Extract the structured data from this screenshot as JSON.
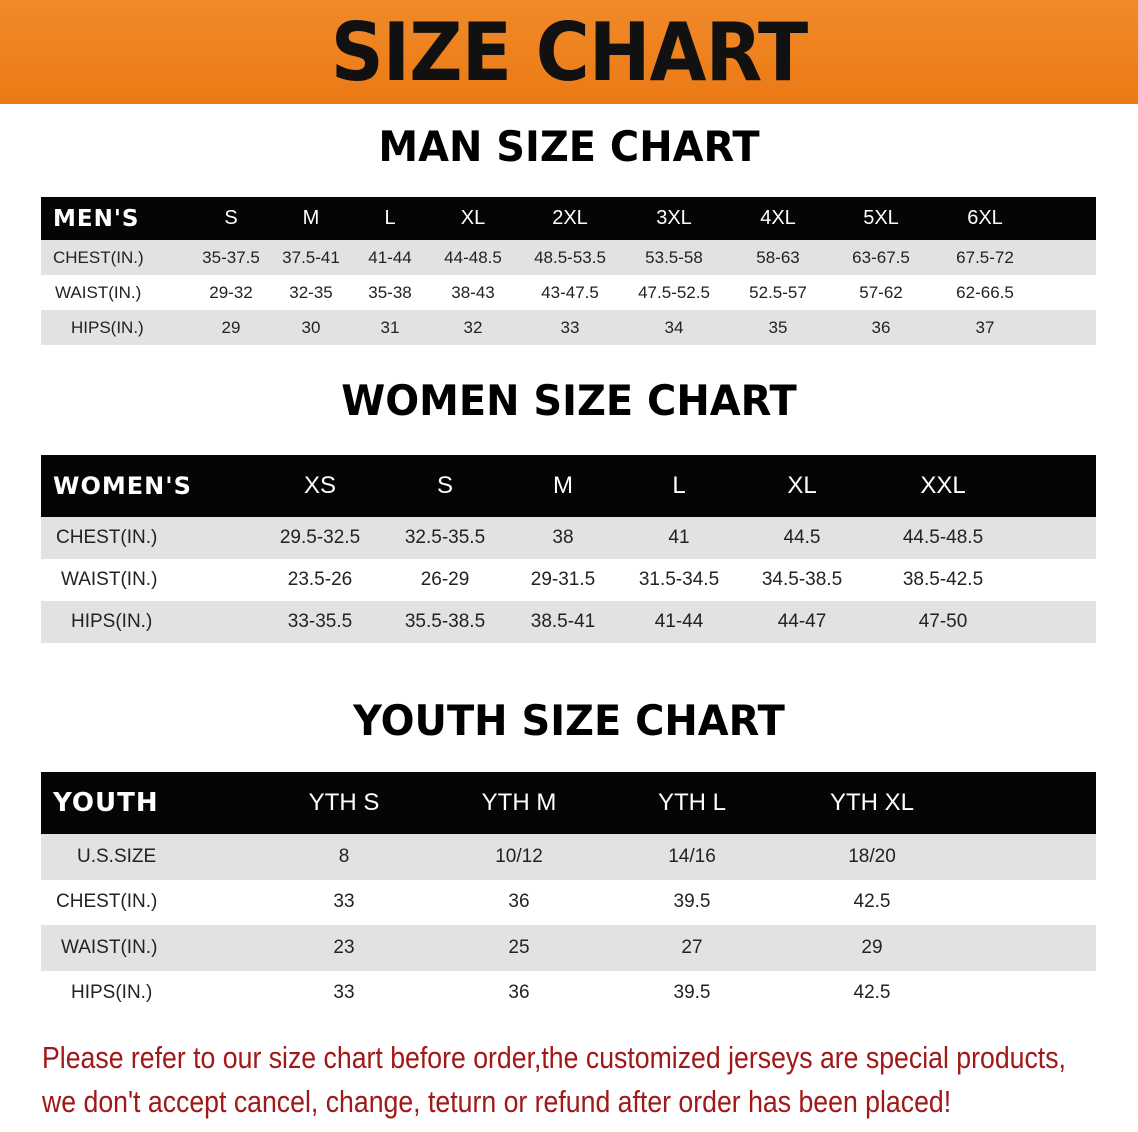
{
  "banner_title": "SIZE CHART",
  "colors": {
    "banner": "#ee7f1c",
    "header_row": "#050505",
    "stripe": "#e2e2e2",
    "note_text": "#a11818"
  },
  "men": {
    "title": "MAN SIZE CHART",
    "header": [
      "MEN'S",
      "S",
      "M",
      "L",
      "XL",
      "2XL",
      "3XL",
      "4XL",
      "5XL",
      "6XL"
    ],
    "rows": [
      [
        "CHEST(IN.)",
        "35-37.5",
        "37.5-41",
        "41-44",
        "44-48.5",
        "48.5-53.5",
        "53.5-58",
        "58-63",
        "63-67.5",
        "67.5-72"
      ],
      [
        "WAIST(IN.)",
        "29-32",
        "32-35",
        "35-38",
        "38-43",
        "43-47.5",
        "47.5-52.5",
        "52.5-57",
        "57-62",
        "62-66.5"
      ],
      [
        "HIPS(IN.)",
        "29",
        "30",
        "31",
        "32",
        "33",
        "34",
        "35",
        "36",
        "37"
      ]
    ]
  },
  "women": {
    "title": "WOMEN SIZE CHART",
    "header": [
      "WOMEN'S",
      "XS",
      "S",
      "M",
      "L",
      "XL",
      "XXL"
    ],
    "rows": [
      [
        "CHEST(IN.)",
        "29.5-32.5",
        "32.5-35.5",
        "38",
        "41",
        "44.5",
        "44.5-48.5"
      ],
      [
        "WAIST(IN.)",
        "23.5-26",
        "26-29",
        "29-31.5",
        "31.5-34.5",
        "34.5-38.5",
        "38.5-42.5"
      ],
      [
        "HIPS(IN.)",
        "33-35.5",
        "35.5-38.5",
        "38.5-41",
        "41-44",
        "44-47",
        "47-50"
      ]
    ]
  },
  "youth": {
    "title": "YOUTH SIZE CHART",
    "header": [
      "YOUTH",
      "YTH S",
      "YTH M",
      "YTH L",
      "YTH XL"
    ],
    "rows": [
      [
        "U.S.SIZE",
        "8",
        "10/12",
        "14/16",
        "18/20"
      ],
      [
        "CHEST(IN.)",
        "33",
        "36",
        "39.5",
        "42.5"
      ],
      [
        "WAIST(IN.)",
        "23",
        "25",
        "27",
        "29"
      ],
      [
        "HIPS(IN.)",
        "33",
        "36",
        "39.5",
        "42.5"
      ]
    ]
  },
  "note": [
    "Please refer to our size chart before order,the customized jerseys are special products,",
    "we don't accept cancel, change, teturn or refund after order has been placed!"
  ]
}
